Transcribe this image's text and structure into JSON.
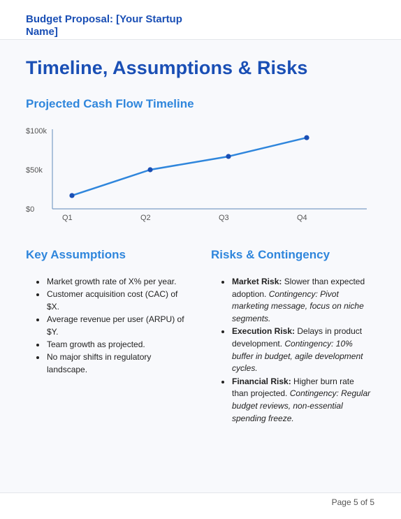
{
  "header": {
    "title": "Budget Proposal: [Your Startup Name]"
  },
  "page_title": "Timeline, Assumptions & Risks",
  "chart_section": {
    "title": "Projected Cash Flow Timeline"
  },
  "chart_data": {
    "type": "line",
    "title": "",
    "xlabel": "",
    "ylabel": "",
    "categories": [
      "Q1",
      "Q2",
      "Q3",
      "Q4"
    ],
    "series": [
      {
        "values": [
          17000,
          50000,
          67000,
          91000
        ]
      }
    ],
    "ylim": [
      0,
      100000
    ],
    "y_ticks": [
      0,
      50000,
      100000
    ],
    "y_tick_labels": [
      "$0",
      "$50k",
      "$100k"
    ],
    "grid": false,
    "legend": "none",
    "line_color": "#2f86dc",
    "point_color": "#1a4fb5",
    "axis_color": "#7b9fc6"
  },
  "assumptions": {
    "title": "Key Assumptions",
    "items": [
      "Market growth rate of X% per year.",
      "Customer acquisition cost (CAC) of $X.",
      "Average revenue per user (ARPU) of $Y.",
      "Team growth as projected.",
      "No major shifts in regulatory landscape."
    ]
  },
  "risks": {
    "title": "Risks & Contingency",
    "items": [
      {
        "name": "Market Risk:",
        "desc": "Slower than expected adoption.",
        "contingency": "Contingency: Pivot marketing message, focus on niche segments."
      },
      {
        "name": "Execution Risk:",
        "desc": "Delays in product development.",
        "contingency": "Contingency: 10% buffer in budget, agile development cycles."
      },
      {
        "name": "Financial Risk:",
        "desc": "Higher burn rate than projected.",
        "contingency": "Contingency: Regular budget reviews, non-essential spending freeze."
      }
    ]
  },
  "footer": {
    "page_number": "Page 5 of 5"
  },
  "colors": {
    "primary": "#1a4fb5",
    "accent": "#2f86dc"
  }
}
